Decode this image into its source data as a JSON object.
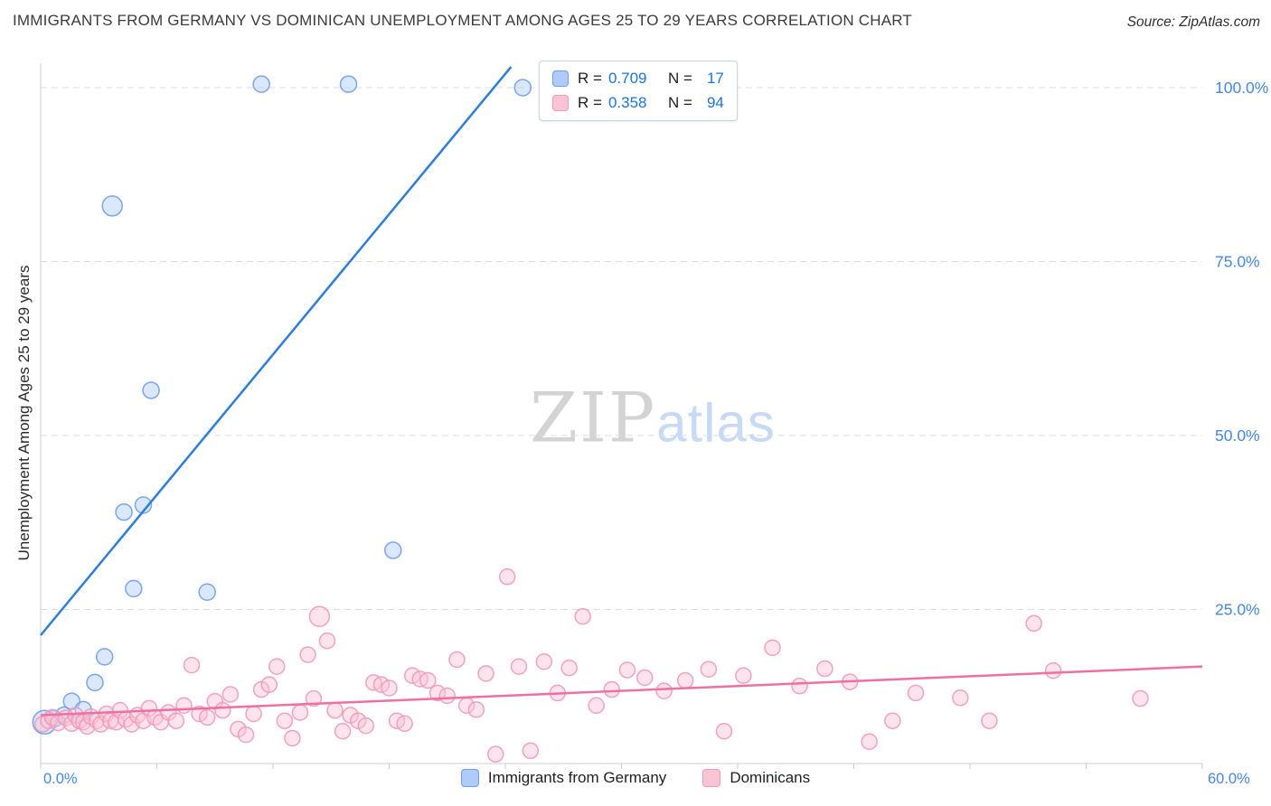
{
  "header": {
    "title": "IMMIGRANTS FROM GERMANY VS DOMINICAN UNEMPLOYMENT AMONG AGES 25 TO 29 YEARS CORRELATION CHART",
    "source": "Source: ZipAtlas.com"
  },
  "watermark": {
    "part1": "ZIP",
    "part2": "atlas"
  },
  "stats": {
    "r_label": "R =",
    "n_label": "N ="
  },
  "axes": {
    "y_label": "Unemployment Among Ages 25 to 29 years",
    "x_min_label": "0.0%",
    "x_max_label": "60.0%"
  },
  "colors": {
    "tick_label": "#4285f4",
    "grid": "#d9dce1",
    "axis": "#c9cdd3",
    "germany_fill": "#aecbfa",
    "germany_stroke": "#6b9cf0",
    "germany_line": "#2a7de1",
    "dominican_fill": "#fbc4d4",
    "dominican_stroke": "#f298b8",
    "dominican_line": "#ee6fa0"
  },
  "chart_data": {
    "type": "scatter",
    "title": "Immigrants from Germany vs Dominican Unemployment Among Ages 25 to 29 years",
    "xlabel": "",
    "ylabel": "Unemployment Among Ages 25 to 29 years",
    "xlim": [
      0,
      0.6
    ],
    "ylim": [
      0,
      1.05
    ],
    "x_tick_step": 0.06,
    "grid": "horizontal-dashed",
    "legend_position": "bottom",
    "yticks": [
      {
        "v": 1.0,
        "label": "100.0%"
      },
      {
        "v": 0.75,
        "label": "75.0%"
      },
      {
        "v": 0.5,
        "label": "50.0%"
      },
      {
        "v": 0.25,
        "label": "25.0%"
      }
    ],
    "series": [
      {
        "id": "germany",
        "name": "Immigrants from Germany",
        "R": 0.709,
        "N": 17,
        "trend": {
          "x1": 0.0,
          "y1": 0.213,
          "x2": 0.243,
          "y2": 1.03
        },
        "points": [
          [
            0.002,
            0.088,
            13
          ],
          [
            0.007,
            0.093
          ],
          [
            0.012,
            0.098
          ],
          [
            0.016,
            0.118
          ],
          [
            0.022,
            0.106
          ],
          [
            0.028,
            0.145
          ],
          [
            0.033,
            0.182
          ],
          [
            0.037,
            0.83,
            11
          ],
          [
            0.043,
            0.39
          ],
          [
            0.048,
            0.28
          ],
          [
            0.053,
            0.4
          ],
          [
            0.057,
            0.565
          ],
          [
            0.086,
            0.275
          ],
          [
            0.114,
            1.005
          ],
          [
            0.159,
            1.005
          ],
          [
            0.182,
            0.335
          ],
          [
            0.249,
            1.0
          ]
        ]
      },
      {
        "id": "dominicans",
        "name": "Dominicans",
        "R": 0.358,
        "N": 94,
        "trend": {
          "x1": 0.0,
          "y1": 0.098,
          "x2": 0.6,
          "y2": 0.168
        },
        "points": [
          [
            0.001,
            0.085
          ],
          [
            0.004,
            0.09
          ],
          [
            0.006,
            0.095
          ],
          [
            0.009,
            0.087
          ],
          [
            0.013,
            0.094
          ],
          [
            0.016,
            0.086
          ],
          [
            0.018,
            0.098
          ],
          [
            0.02,
            0.09
          ],
          [
            0.022,
            0.088
          ],
          [
            0.024,
            0.082
          ],
          [
            0.026,
            0.096
          ],
          [
            0.029,
            0.09
          ],
          [
            0.031,
            0.085
          ],
          [
            0.034,
            0.1
          ],
          [
            0.036,
            0.09
          ],
          [
            0.039,
            0.088
          ],
          [
            0.041,
            0.105
          ],
          [
            0.044,
            0.092
          ],
          [
            0.047,
            0.085
          ],
          [
            0.05,
            0.098
          ],
          [
            0.053,
            0.09
          ],
          [
            0.056,
            0.108
          ],
          [
            0.059,
            0.095
          ],
          [
            0.062,
            0.088
          ],
          [
            0.066,
            0.102
          ],
          [
            0.07,
            0.09
          ],
          [
            0.074,
            0.112
          ],
          [
            0.078,
            0.17
          ],
          [
            0.082,
            0.1
          ],
          [
            0.086,
            0.095
          ],
          [
            0.09,
            0.118
          ],
          [
            0.094,
            0.105
          ],
          [
            0.098,
            0.128
          ],
          [
            0.102,
            0.078
          ],
          [
            0.106,
            0.07
          ],
          [
            0.11,
            0.1
          ],
          [
            0.114,
            0.135
          ],
          [
            0.118,
            0.142
          ],
          [
            0.122,
            0.168
          ],
          [
            0.126,
            0.09
          ],
          [
            0.13,
            0.065
          ],
          [
            0.134,
            0.102
          ],
          [
            0.138,
            0.185
          ],
          [
            0.141,
            0.122
          ],
          [
            0.144,
            0.24,
            11
          ],
          [
            0.148,
            0.205
          ],
          [
            0.152,
            0.105
          ],
          [
            0.156,
            0.075
          ],
          [
            0.16,
            0.098
          ],
          [
            0.164,
            0.09
          ],
          [
            0.168,
            0.083
          ],
          [
            0.172,
            0.145
          ],
          [
            0.176,
            0.142
          ],
          [
            0.18,
            0.137
          ],
          [
            0.184,
            0.09
          ],
          [
            0.188,
            0.086
          ],
          [
            0.192,
            0.155
          ],
          [
            0.196,
            0.15
          ],
          [
            0.2,
            0.148
          ],
          [
            0.205,
            0.13
          ],
          [
            0.21,
            0.126
          ],
          [
            0.215,
            0.178
          ],
          [
            0.22,
            0.112
          ],
          [
            0.225,
            0.106
          ],
          [
            0.23,
            0.158
          ],
          [
            0.235,
            0.042
          ],
          [
            0.241,
            0.297
          ],
          [
            0.247,
            0.168
          ],
          [
            0.253,
            0.047
          ],
          [
            0.26,
            0.175
          ],
          [
            0.267,
            0.13
          ],
          [
            0.273,
            0.166
          ],
          [
            0.28,
            0.24
          ],
          [
            0.287,
            0.112
          ],
          [
            0.295,
            0.135
          ],
          [
            0.303,
            0.163
          ],
          [
            0.312,
            0.152
          ],
          [
            0.322,
            0.133
          ],
          [
            0.333,
            0.148
          ],
          [
            0.345,
            0.164
          ],
          [
            0.353,
            0.075
          ],
          [
            0.363,
            0.155
          ],
          [
            0.378,
            0.195
          ],
          [
            0.392,
            0.14
          ],
          [
            0.405,
            0.165
          ],
          [
            0.418,
            0.146
          ],
          [
            0.428,
            0.06
          ],
          [
            0.44,
            0.09
          ],
          [
            0.452,
            0.13
          ],
          [
            0.475,
            0.123
          ],
          [
            0.49,
            0.09
          ],
          [
            0.513,
            0.23
          ],
          [
            0.523,
            0.162
          ],
          [
            0.568,
            0.122
          ]
        ]
      }
    ]
  }
}
